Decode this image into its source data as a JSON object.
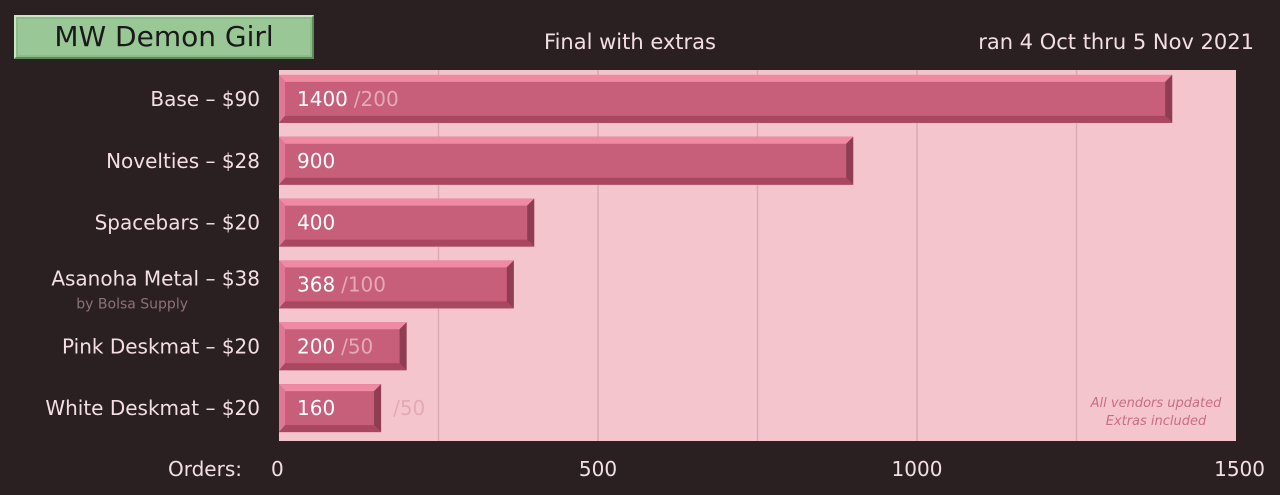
{
  "header": {
    "title": "MW Demon Girl",
    "subtitle": "Final with extras",
    "date_range": "ran 4 Oct thru 5 Nov 2021"
  },
  "colors": {
    "background": "#2a1f21",
    "plot_background": "#f5c5ce",
    "bar": "#c85f7a",
    "bar_highlight": "#f08aa3",
    "bar_shadow": "#8f3d52",
    "title_box": "#9ac796"
  },
  "chart_data": {
    "type": "bar",
    "orientation": "horizontal",
    "title": "Final with extras",
    "xlabel": "Orders:",
    "xlim": [
      0,
      1500
    ],
    "xticks": [
      0,
      500,
      1000,
      1500
    ],
    "grid": true,
    "categories": [
      "Base – $90",
      "Novelties – $28",
      "Spacebars – $20",
      "Asanoha Metal – $38",
      "Pink Deskmat – $20",
      "White Deskmat – $20"
    ],
    "category_notes": [
      "",
      "",
      "",
      "by Bolsa Supply",
      "",
      ""
    ],
    "values": [
      1400,
      900,
      400,
      368,
      200,
      160
    ],
    "value_labels": [
      "1400",
      "900",
      "400",
      "368",
      "200",
      "160"
    ],
    "extras": [
      "/200",
      "",
      "",
      "/100",
      "/50",
      "/50"
    ],
    "annotation": [
      "All vendors updated",
      "Extras included"
    ]
  }
}
